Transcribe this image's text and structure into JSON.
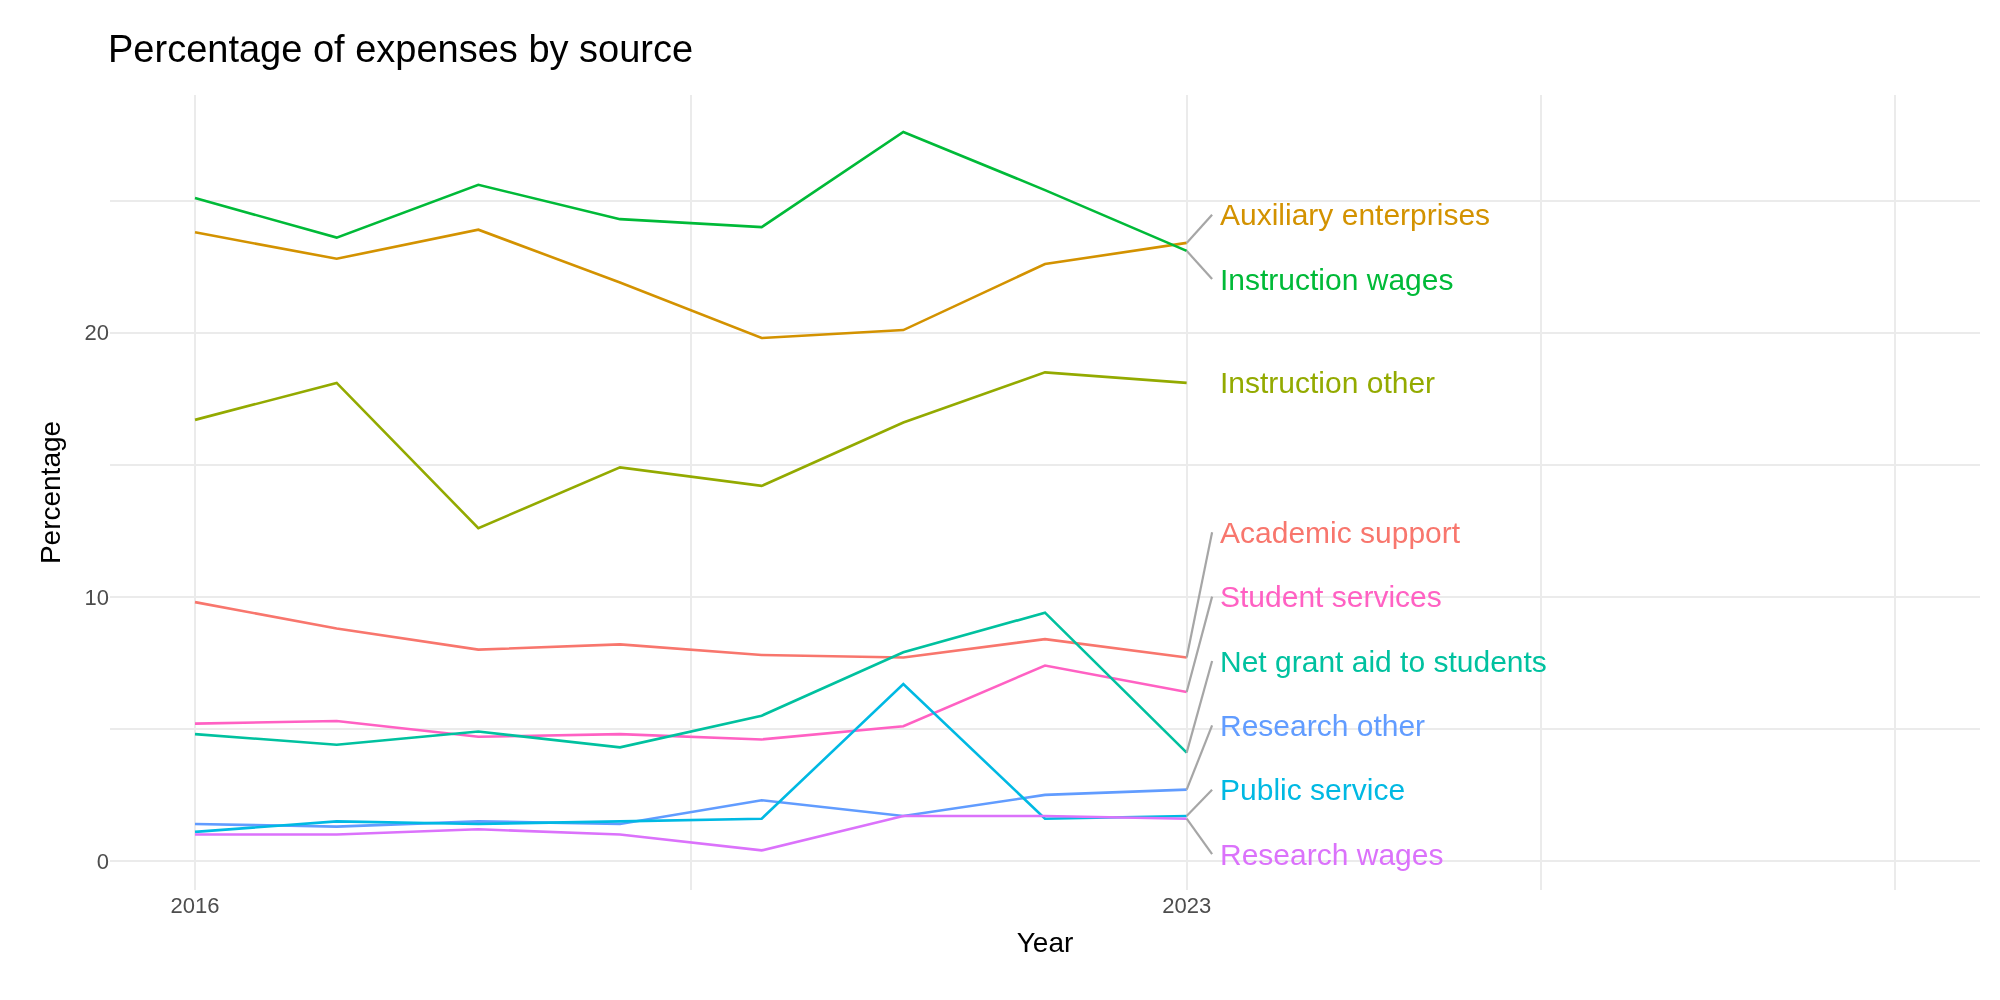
{
  "chart_data": {
    "type": "line",
    "title": "Percentage of expenses by source",
    "xlabel": "Year",
    "ylabel": "Percentage",
    "x": [
      2016,
      2017,
      2018,
      2019,
      2020,
      2021,
      2022,
      2023
    ],
    "series": [
      {
        "name": "Auxiliary enterprises",
        "color": "#d39200",
        "values": [
          23.8,
          22.8,
          23.9,
          21.9,
          19.8,
          20.1,
          22.6,
          23.4
        ]
      },
      {
        "name": "Instruction wages",
        "color": "#00ba38",
        "values": [
          25.1,
          23.6,
          25.6,
          24.3,
          24.0,
          27.6,
          25.4,
          23.1
        ]
      },
      {
        "name": "Instruction other",
        "color": "#93aa00",
        "values": [
          16.7,
          18.1,
          12.6,
          14.9,
          14.2,
          16.6,
          18.5,
          18.1
        ]
      },
      {
        "name": "Academic support",
        "color": "#f8766d",
        "values": [
          9.8,
          8.8,
          8.0,
          8.2,
          7.8,
          7.7,
          8.4,
          7.7
        ]
      },
      {
        "name": "Student services",
        "color": "#ff61c3",
        "values": [
          5.2,
          5.3,
          4.7,
          4.8,
          4.6,
          5.1,
          7.4,
          6.4
        ]
      },
      {
        "name": "Net grant aid to students",
        "color": "#00c19f",
        "values": [
          4.8,
          4.4,
          4.9,
          4.3,
          5.5,
          7.9,
          9.4,
          4.1
        ]
      },
      {
        "name": "Research other",
        "color": "#619cff",
        "values": [
          1.4,
          1.3,
          1.5,
          1.4,
          2.3,
          1.7,
          2.5,
          2.7
        ]
      },
      {
        "name": "Public service",
        "color": "#00b9e3",
        "values": [
          1.1,
          1.5,
          1.4,
          1.5,
          1.6,
          6.7,
          1.6,
          1.7
        ]
      },
      {
        "name": "Research wages",
        "color": "#db72fb",
        "values": [
          1.0,
          1.0,
          1.2,
          1.0,
          0.4,
          1.7,
          1.7,
          1.6
        ]
      }
    ],
    "xlim": [
      2015.4,
      2028.6
    ],
    "xticks": [
      2016,
      {
        "value": 2019.5,
        "label": null
      },
      2023,
      {
        "value": 2025.5,
        "label": null
      },
      {
        "value": 2028,
        "label": null
      }
    ],
    "ylim": [
      -1.1,
      29
    ],
    "yticks": [
      0,
      {
        "value": 5,
        "label": null
      },
      10,
      {
        "value": 15,
        "label": null
      },
      20,
      {
        "value": 25,
        "label": null
      }
    ],
    "grid": true,
    "legend": false,
    "marker": "none",
    "line_style": "solid"
  }
}
